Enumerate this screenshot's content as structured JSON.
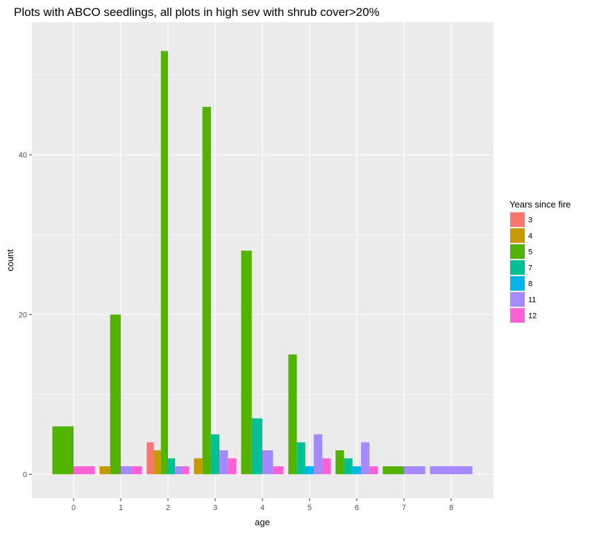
{
  "chart_data": {
    "type": "bar",
    "title": "Plots with ABCO seedlings, all plots in high sev with shrub cover>20%",
    "xlabel": "age",
    "ylabel": "count",
    "categories": [
      "0",
      "1",
      "2",
      "3",
      "4",
      "5",
      "6",
      "7",
      "8"
    ],
    "y_ticks": [
      "0",
      "20",
      "40"
    ],
    "ylim": [
      -3,
      56.6
    ],
    "grid": true,
    "legend": {
      "title": "Years since fire",
      "placement": "right"
    },
    "series": [
      {
        "name": "3",
        "color": "#F8766D",
        "values": [
          null,
          null,
          4,
          null,
          null,
          null,
          null,
          null,
          null
        ]
      },
      {
        "name": "4",
        "color": "#C49A00",
        "values": [
          null,
          1,
          3,
          2,
          null,
          null,
          null,
          null,
          null
        ]
      },
      {
        "name": "5",
        "color": "#53B400",
        "values": [
          6,
          20,
          53,
          46,
          28,
          15,
          3,
          1,
          null
        ]
      },
      {
        "name": "7",
        "color": "#00C094",
        "values": [
          null,
          null,
          2,
          5,
          7,
          4,
          2,
          null,
          null
        ]
      },
      {
        "name": "8",
        "color": "#00B6EB",
        "values": [
          null,
          null,
          null,
          null,
          null,
          1,
          1,
          null,
          null
        ]
      },
      {
        "name": "11",
        "color": "#A58AFF",
        "values": [
          null,
          1,
          1,
          3,
          3,
          5,
          4,
          1,
          1
        ]
      },
      {
        "name": "12",
        "color": "#FB61D7",
        "values": [
          1,
          1,
          1,
          2,
          1,
          2,
          1,
          null,
          null
        ]
      }
    ]
  }
}
